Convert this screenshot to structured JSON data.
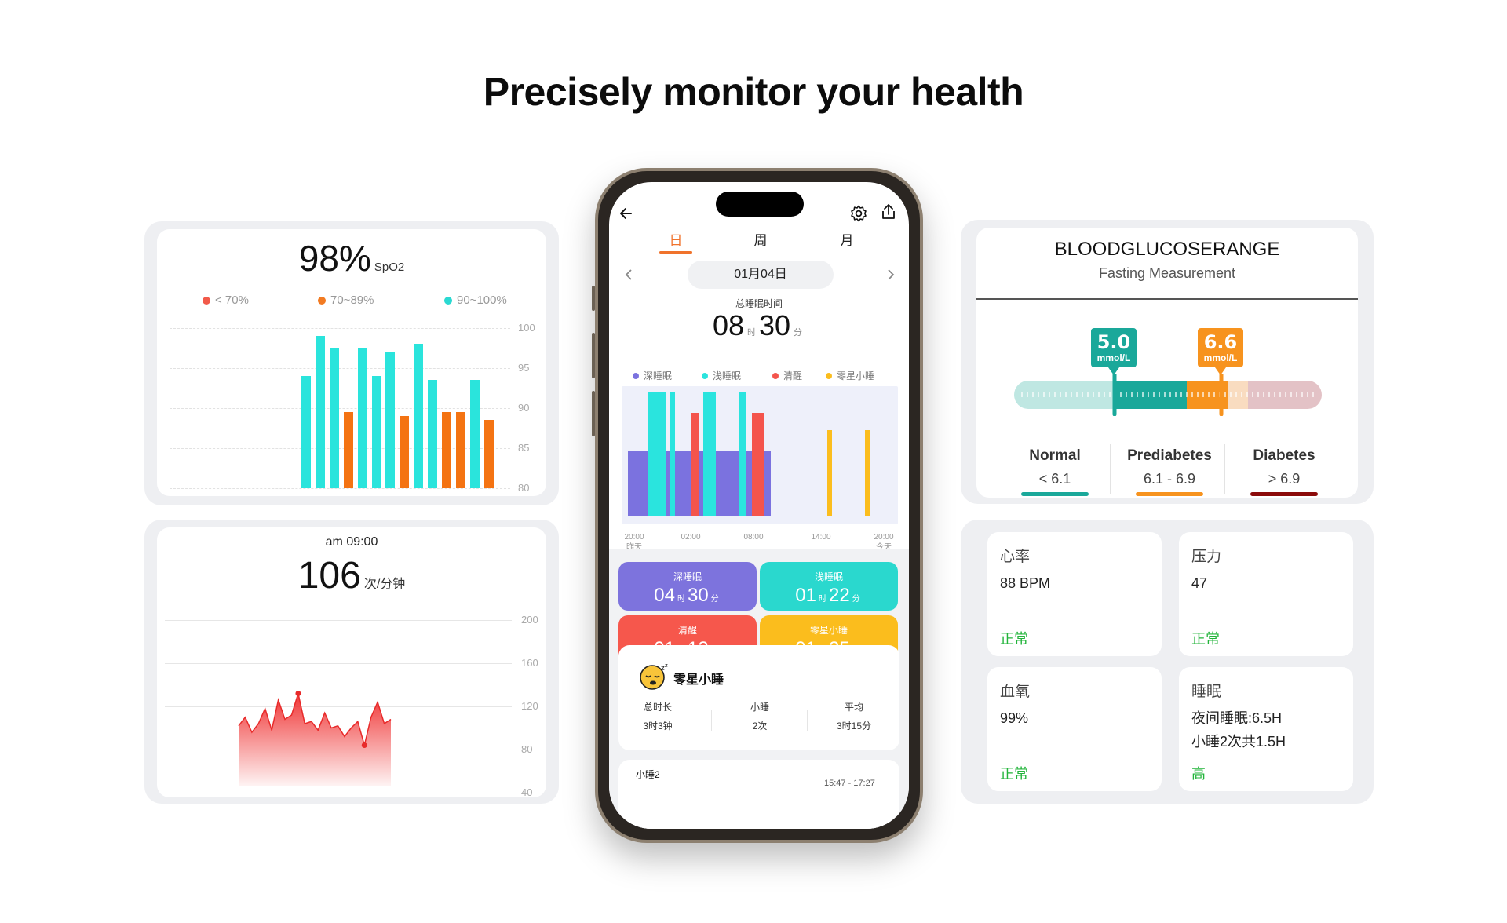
{
  "headline": "Precisely monitor your health",
  "spo2": {
    "value": "98%",
    "unit": "SpO2",
    "legend": [
      {
        "label": "< 70%",
        "color": "#f25a4a"
      },
      {
        "label": "70~89%",
        "color": "#f27b22"
      },
      {
        "label": "90~100%",
        "color": "#2ad9d2"
      }
    ],
    "yticks": [
      "100",
      "95",
      "90",
      "85",
      "80"
    ],
    "bars": [
      {
        "v": 94,
        "c": "cyan"
      },
      {
        "v": 99,
        "c": "cyan"
      },
      {
        "v": 97.5,
        "c": "cyan"
      },
      {
        "v": 89.5,
        "c": "orange"
      },
      {
        "v": 97.5,
        "c": "cyan"
      },
      {
        "v": 94,
        "c": "cyan"
      },
      {
        "v": 97,
        "c": "cyan"
      },
      {
        "v": 89,
        "c": "orange"
      },
      {
        "v": 98,
        "c": "cyan"
      },
      {
        "v": 93.5,
        "c": "cyan"
      },
      {
        "v": 89.5,
        "c": "orange"
      },
      {
        "v": 89.5,
        "c": "orange"
      },
      {
        "v": 93.5,
        "c": "cyan"
      },
      {
        "v": 88.5,
        "c": "orange"
      }
    ]
  },
  "heart": {
    "time": "am 09:00",
    "value": "106",
    "unit": "次/分钟",
    "yticks": [
      "200",
      "160",
      "120",
      "80",
      "40"
    ],
    "points": [
      102,
      110,
      96,
      104,
      118,
      98,
      126,
      108,
      112,
      132,
      104,
      106,
      98,
      114,
      100,
      102,
      92,
      100,
      106,
      84,
      110,
      124,
      104,
      108
    ]
  },
  "phone": {
    "tabs": [
      "日",
      "周",
      "月"
    ],
    "date": "01月04日",
    "total_label": "总睡眠时间",
    "total_h": "08",
    "total_h_unit": "时",
    "total_m": "30",
    "total_m_unit": "分",
    "legend": [
      {
        "label": "深睡眠",
        "color": "#7b72df"
      },
      {
        "label": "浅睡眠",
        "color": "#2ae4de"
      },
      {
        "label": "清醒",
        "color": "#f4544c"
      },
      {
        "label": "零星小睡",
        "color": "#fbbd1d"
      }
    ],
    "axis": [
      {
        "t": "20:00",
        "s": "昨天"
      },
      {
        "t": "02:00",
        "s": ""
      },
      {
        "t": "08:00",
        "s": ""
      },
      {
        "t": "14:00",
        "s": ""
      },
      {
        "t": "20:00",
        "s": "今天"
      }
    ],
    "tiles": [
      {
        "label": "深睡眠",
        "h": "04",
        "m": "30",
        "color": "#7d73dd"
      },
      {
        "label": "浅睡眠",
        "h": "01",
        "m": "22",
        "color": "#2ad8ce"
      },
      {
        "label": "清醒",
        "h": "01",
        "m": "13",
        "color": "#f6574c"
      },
      {
        "label": "零星小睡",
        "h": "01",
        "m": "25",
        "color": "#fbbd1d"
      }
    ],
    "unit_h": "时",
    "unit_m": "分",
    "nap": {
      "title": "零星小睡",
      "cols": [
        {
          "label": "总时长",
          "value": "3时3钟"
        },
        {
          "label": "小睡",
          "value": "2次"
        },
        {
          "label": "平均",
          "value": "3时15分"
        }
      ]
    },
    "nap2": {
      "title": "小睡2",
      "time": "15:47 - 17:27"
    }
  },
  "glucose": {
    "title": "BLOODGLUCOSERANGE",
    "subtitle": "Fasting Measurement",
    "markers": [
      {
        "value": "5.0",
        "unit": "mmol/L",
        "color": "#1aa89a"
      },
      {
        "value": "6.6",
        "unit": "mmol/L",
        "color": "#f7931e"
      }
    ],
    "ranges": [
      {
        "name": "Normal",
        "value": "< 6.1",
        "color": "#1aa89a"
      },
      {
        "name": "Prediabetes",
        "value": "6.1 - 6.9",
        "color": "#f7931e"
      },
      {
        "name": "Diabetes",
        "value": "> 6.9",
        "color": "#8b0a0a"
      }
    ]
  },
  "metrics": [
    {
      "title": "心率",
      "lines": [
        "88 BPM"
      ],
      "status": "正常"
    },
    {
      "title": "压力",
      "lines": [
        "47"
      ],
      "status": "正常"
    },
    {
      "title": "血氧",
      "lines": [
        "99%"
      ],
      "status": "正常"
    },
    {
      "title": "睡眠",
      "lines": [
        "夜间睡眠:6.5H",
        "小睡2次共1.5H"
      ],
      "status": "高"
    }
  ]
}
